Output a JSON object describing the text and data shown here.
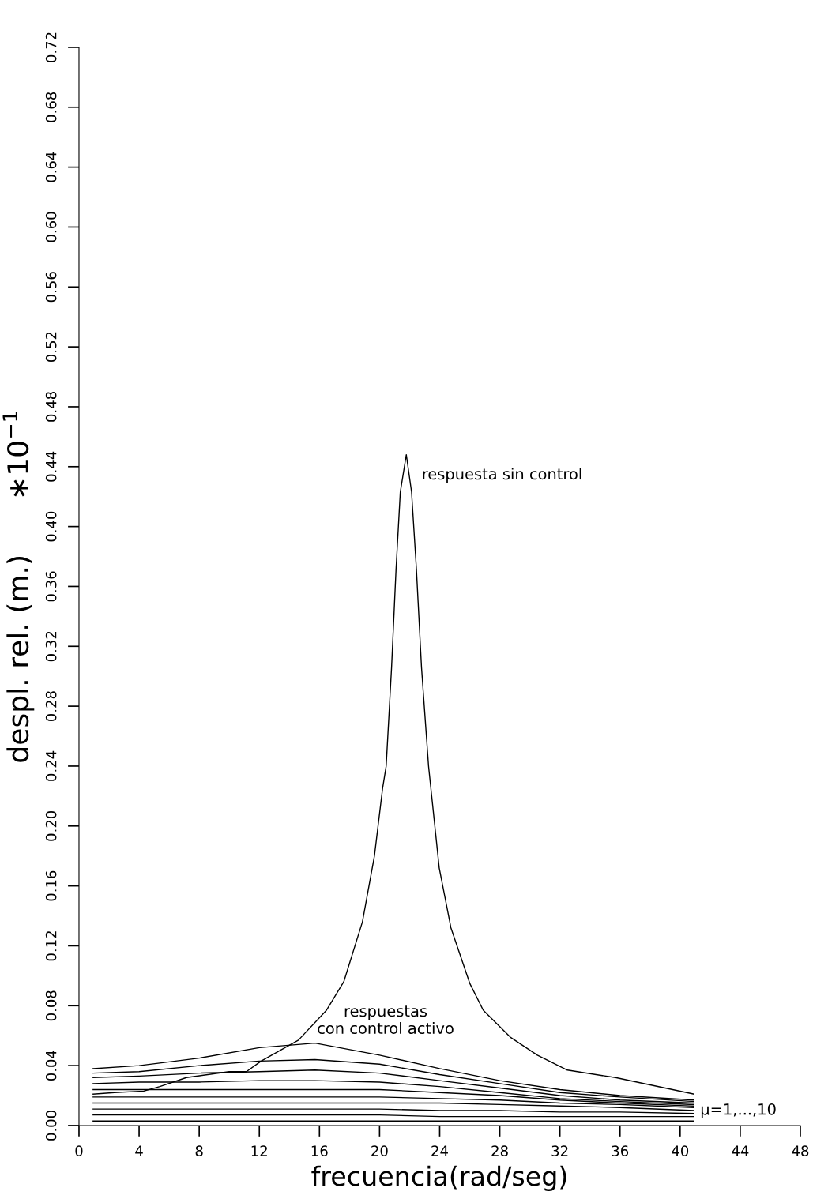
{
  "chart_data": {
    "type": "line",
    "xlabel": "frecuencia(rad/seg)",
    "ylabel": "despl. rel. (m.)      ∗10$^{−1}$",
    "xlim": [
      0,
      48
    ],
    "xticks": [
      0,
      4,
      8,
      12,
      16,
      20,
      24,
      28,
      32,
      36,
      40,
      44,
      48
    ],
    "ylim": [
      0,
      0.72
    ],
    "yticks": [
      {
        "value": 0,
        "label": "0.00"
      },
      {
        "value": 0.04,
        "label": "0.04"
      },
      {
        "value": 0.08,
        "label": "0.08"
      },
      {
        "value": 0.12,
        "label": "0.12"
      },
      {
        "value": 0.16,
        "label": "0.16"
      },
      {
        "value": 0.2,
        "label": "0.20"
      },
      {
        "value": 0.24,
        "label": "0.24"
      },
      {
        "value": 0.28,
        "label": "0.28"
      },
      {
        "value": 0.32,
        "label": "0.32"
      },
      {
        "value": 0.36,
        "label": "0.36"
      },
      {
        "value": 0.4,
        "label": "0.40"
      },
      {
        "value": 0.44,
        "label": "0.44"
      },
      {
        "value": 0.48,
        "label": "0.48"
      },
      {
        "value": 0.52,
        "label": "0.52"
      },
      {
        "value": 0.56,
        "label": "0.56"
      },
      {
        "value": 0.6,
        "label": "0.60"
      },
      {
        "value": 0.64,
        "label": "0.64"
      },
      {
        "value": 0.68,
        "label": "0.68"
      },
      {
        "value": 0.72,
        "label": "0.72"
      }
    ],
    "grid": false,
    "marker": "none",
    "line_style": "solid",
    "series": [
      {
        "color": "#000000",
        "x": [
          0.94,
          2.36,
          4.31,
          5.38,
          7.15,
          9.99,
          11.14,
          12.12,
          14.6,
          16.47,
          17.62,
          18.86,
          19.66,
          20.2,
          20.44,
          20.8,
          21.1,
          21.38,
          21.78,
          22.13,
          22.45,
          22.79,
          23.26,
          23.97,
          24.75,
          26.0,
          26.9,
          28.7,
          30.5,
          32.5,
          35.7,
          40.9
        ],
        "values": [
          0.021,
          0.022,
          0.023,
          0.026,
          0.032,
          0.036,
          0.036,
          0.043,
          0.057,
          0.077,
          0.096,
          0.136,
          0.18,
          0.225,
          0.24,
          0.306,
          0.372,
          0.423,
          0.448,
          0.423,
          0.372,
          0.306,
          0.24,
          0.172,
          0.132,
          0.095,
          0.077,
          0.059,
          0.047,
          0.037,
          0.032,
          0.021
        ]
      },
      {
        "color": "#000000",
        "x": [
          0.94,
          4,
          8,
          12,
          15.7,
          20,
          24,
          28,
          32,
          36,
          40.9
        ],
        "values": [
          0.038,
          0.04,
          0.045,
          0.052,
          0.055,
          0.047,
          0.038,
          0.03,
          0.024,
          0.02,
          0.017
        ]
      },
      {
        "color": "#000000",
        "x": [
          0.94,
          4,
          8,
          12,
          15.7,
          20,
          24,
          28,
          32,
          36,
          40.9
        ],
        "values": [
          0.035,
          0.036,
          0.04,
          0.043,
          0.044,
          0.041,
          0.034,
          0.028,
          0.022,
          0.019,
          0.016
        ]
      },
      {
        "color": "#000000",
        "x": [
          0.94,
          4,
          8,
          12,
          15.7,
          20,
          24,
          28,
          32,
          36,
          40.9
        ],
        "values": [
          0.032,
          0.033,
          0.035,
          0.036,
          0.037,
          0.035,
          0.03,
          0.025,
          0.02,
          0.017,
          0.015
        ]
      },
      {
        "color": "#000000",
        "x": [
          0.94,
          4,
          8,
          12,
          15.7,
          20,
          24,
          28,
          32,
          36,
          40.9
        ],
        "values": [
          0.028,
          0.029,
          0.029,
          0.03,
          0.03,
          0.029,
          0.026,
          0.022,
          0.018,
          0.016,
          0.014
        ]
      },
      {
        "color": "#000000",
        "x": [
          0.94,
          4,
          8,
          12,
          15.7,
          20,
          24,
          28,
          32,
          36,
          40.9
        ],
        "values": [
          0.024,
          0.024,
          0.024,
          0.024,
          0.024,
          0.024,
          0.022,
          0.02,
          0.017,
          0.015,
          0.013
        ]
      },
      {
        "color": "#000000",
        "x": [
          0.94,
          4,
          8,
          12,
          15.7,
          20,
          24,
          28,
          32,
          36,
          40.9
        ],
        "values": [
          0.019,
          0.019,
          0.019,
          0.019,
          0.019,
          0.019,
          0.018,
          0.017,
          0.015,
          0.014,
          0.012
        ]
      },
      {
        "color": "#000000",
        "x": [
          0.94,
          4,
          8,
          12,
          15.7,
          20,
          24,
          28,
          32,
          36,
          40.9
        ],
        "values": [
          0.015,
          0.015,
          0.015,
          0.015,
          0.015,
          0.015,
          0.015,
          0.014,
          0.013,
          0.012,
          0.01
        ]
      },
      {
        "color": "#000000",
        "x": [
          0.94,
          4,
          8,
          12,
          15.7,
          20,
          24,
          28,
          32,
          36,
          40.9
        ],
        "values": [
          0.011,
          0.011,
          0.011,
          0.011,
          0.011,
          0.011,
          0.01,
          0.01,
          0.009,
          0.009,
          0.008
        ]
      },
      {
        "color": "#000000",
        "x": [
          0.94,
          4,
          8,
          12,
          15.7,
          20,
          24,
          28,
          32,
          36,
          40.9
        ],
        "values": [
          0.007,
          0.007,
          0.007,
          0.007,
          0.007,
          0.007,
          0.006,
          0.006,
          0.006,
          0.006,
          0.006
        ]
      },
      {
        "color": "#000000",
        "x": [
          0.94,
          4,
          8,
          12,
          15.7,
          20,
          24,
          28,
          32,
          36,
          40.9
        ],
        "values": [
          0.003,
          0.003,
          0.003,
          0.003,
          0.003,
          0.003,
          0.003,
          0.003,
          0.003,
          0.003,
          0.003
        ]
      }
    ],
    "annotations": [
      {
        "text": "respuesta sin control",
        "x": 21.78,
        "y": 0.448
      },
      "respuestas\ncon control activo",
      {
        "text": "μ=1,...,10",
        "x": 40.9,
        "y": 0.01
      }
    ]
  }
}
